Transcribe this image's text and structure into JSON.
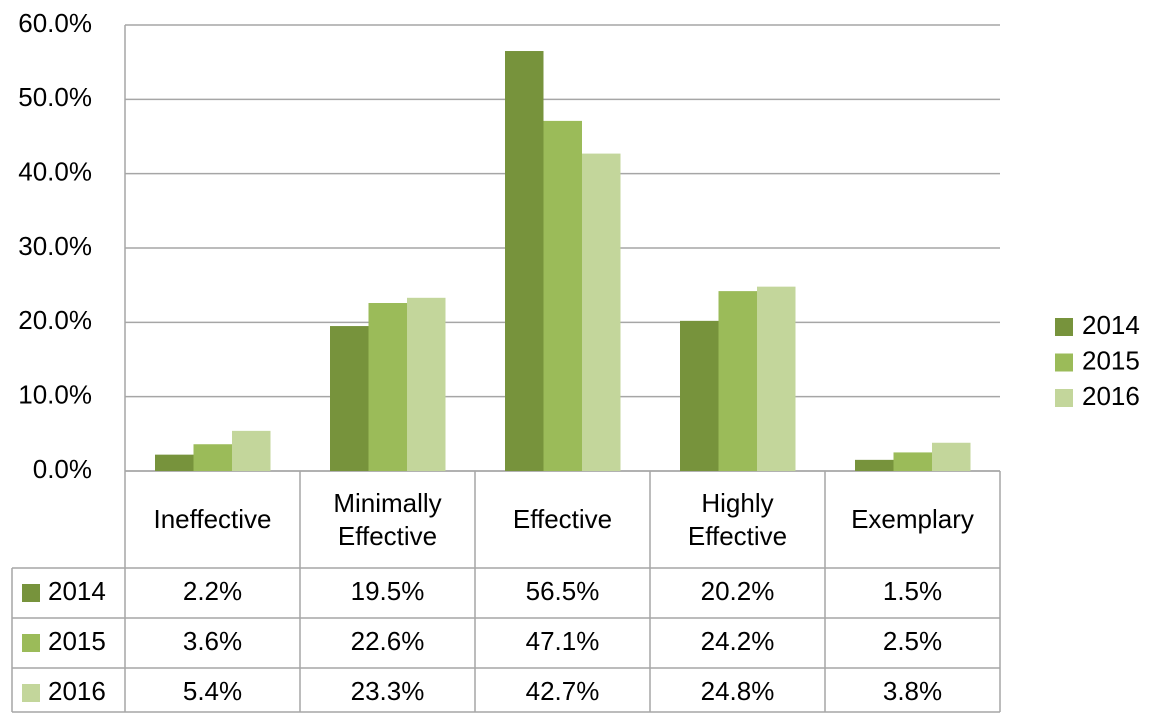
{
  "chart_data": {
    "type": "bar",
    "categories": [
      "Ineffective",
      "Minimally Effective",
      "Effective",
      "Highly Effective",
      "Exemplary"
    ],
    "series": [
      {
        "name": "2014",
        "color": "#77933c",
        "values": [
          2.2,
          19.5,
          56.5,
          20.2,
          1.5
        ],
        "value_labels": [
          "2.2%",
          "19.5%",
          "56.5%",
          "20.2%",
          "1.5%"
        ]
      },
      {
        "name": "2015",
        "color": "#9bbb59",
        "values": [
          3.6,
          22.6,
          47.1,
          24.2,
          2.5
        ],
        "value_labels": [
          "3.6%",
          "22.6%",
          "47.1%",
          "24.2%",
          "2.5%"
        ]
      },
      {
        "name": "2016",
        "color": "#c3d69b",
        "values": [
          5.4,
          23.3,
          42.7,
          24.8,
          3.8
        ],
        "value_labels": [
          "5.4%",
          "23.3%",
          "42.7%",
          "24.8%",
          "3.8%"
        ]
      }
    ],
    "ylim": [
      0,
      60
    ],
    "yticks": [
      {
        "value": 0,
        "label": "0.0%"
      },
      {
        "value": 10,
        "label": "10.0%"
      },
      {
        "value": 20,
        "label": "20.0%"
      },
      {
        "value": 30,
        "label": "30.0%"
      },
      {
        "value": 40,
        "label": "40.0%"
      },
      {
        "value": 50,
        "label": "50.0%"
      },
      {
        "value": 60,
        "label": "60.0%"
      }
    ],
    "grid": true,
    "legend": "right"
  }
}
